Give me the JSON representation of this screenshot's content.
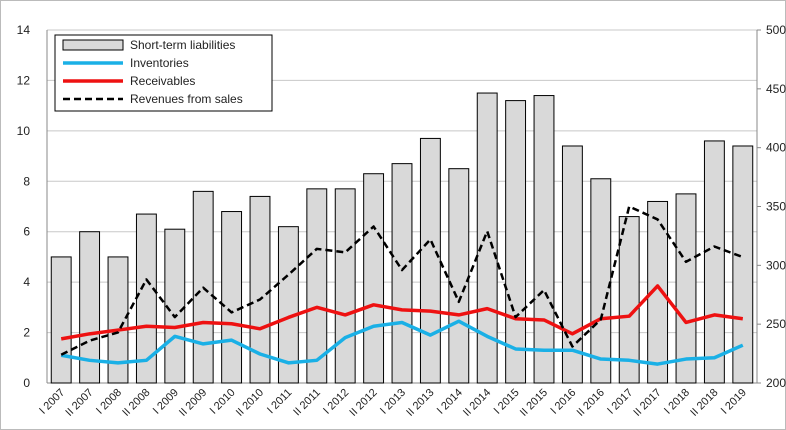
{
  "chart_data": {
    "type": "bar-line",
    "categories": [
      "I 2007",
      "II 2007",
      "I 2008",
      "II 2008",
      "I 2009",
      "II 2009",
      "I 2010",
      "II 2010",
      "I 2011",
      "II 2011",
      "I 2012",
      "II 2012",
      "I 2013",
      "II 2013",
      "I 2014",
      "II 2014",
      "I 2015",
      "II 2015",
      "I 2016",
      "II 2016",
      "I 2017",
      "II 2017",
      "I 2018",
      "II 2018",
      "I 2019"
    ],
    "series": [
      {
        "name": "Short-term liabilities",
        "kind": "bar",
        "color": "#d9d9d9",
        "values": [
          5.0,
          6.0,
          5.0,
          6.7,
          6.1,
          7.6,
          6.8,
          7.4,
          6.2,
          7.7,
          7.7,
          8.3,
          8.7,
          9.7,
          8.5,
          11.5,
          11.2,
          11.4,
          9.4,
          8.1,
          6.6,
          7.2,
          7.5,
          9.6,
          9.4
        ]
      },
      {
        "name": "Inventories",
        "kind": "line",
        "color": "#1ab0e6",
        "values": [
          1.1,
          0.9,
          0.8,
          0.9,
          1.85,
          1.55,
          1.7,
          1.15,
          0.8,
          0.9,
          1.8,
          2.25,
          2.4,
          1.9,
          2.45,
          1.85,
          1.35,
          1.3,
          1.3,
          0.95,
          0.9,
          0.75,
          0.95,
          1.0,
          1.5
        ]
      },
      {
        "name": "Receivables",
        "kind": "line",
        "color": "#ee1111",
        "values": [
          1.75,
          1.95,
          2.1,
          2.25,
          2.2,
          2.4,
          2.35,
          2.15,
          2.6,
          3.0,
          2.7,
          3.1,
          2.9,
          2.85,
          2.7,
          2.95,
          2.55,
          2.5,
          1.95,
          2.55,
          2.65,
          3.85,
          2.4,
          2.7,
          2.55
        ]
      },
      {
        "name": "Revenues from sales",
        "kind": "dashed",
        "color": "#000000",
        "axis": "y2",
        "values": [
          224,
          236,
          243,
          288,
          256,
          281,
          260,
          271,
          292,
          314,
          311,
          333,
          296,
          322,
          269,
          329,
          256,
          279,
          231,
          254,
          350,
          339,
          303,
          316,
          307
        ]
      }
    ],
    "ylim": [
      0,
      14
    ],
    "yticks": [
      0,
      2,
      4,
      6,
      8,
      10,
      12,
      14
    ],
    "y2lim": [
      200,
      500
    ],
    "y2ticks": [
      200,
      250,
      300,
      350,
      400,
      450,
      500
    ],
    "grid": true,
    "legend": "upper left"
  }
}
